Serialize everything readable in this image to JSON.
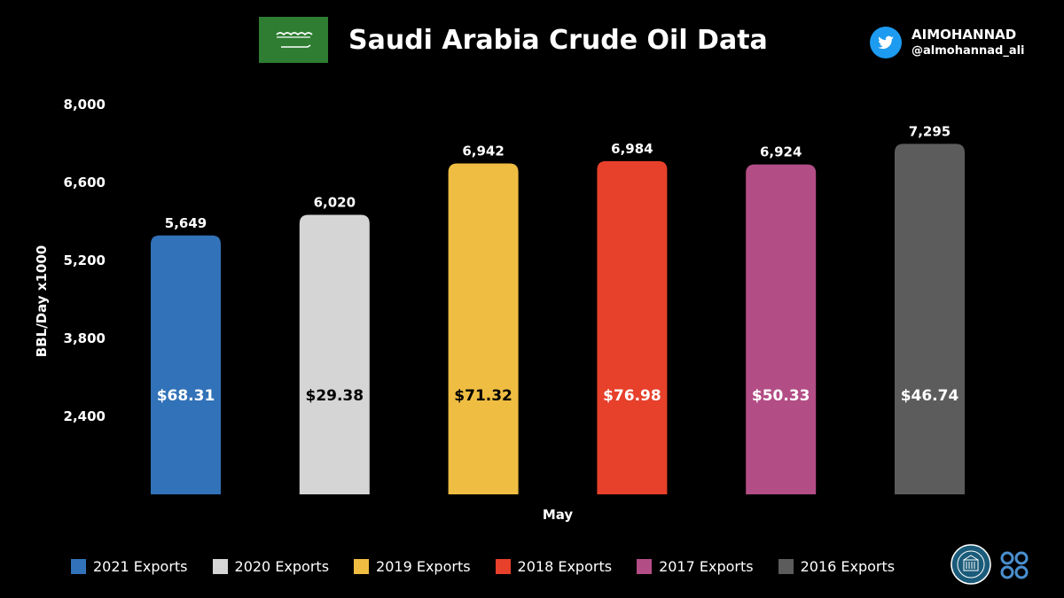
{
  "header": {
    "title": "Saudi Arabia Crude Oil Data",
    "author_name": "AIMOHANNAD",
    "author_handle": "@almohannad_ali",
    "flag_color": "#2e7d32",
    "icons": [
      "saudi-flag-icon",
      "twitter-icon",
      "seal-logo-icon",
      "opec-logo-icon"
    ]
  },
  "chart_data": {
    "type": "bar",
    "title": "Saudi Arabia Crude Oil Data",
    "xlabel": "May",
    "ylabel": "BBL/Day x1000",
    "ylim": [
      1000,
      8000
    ],
    "yticks": [
      "8,000",
      "6,600",
      "5,200",
      "3,800",
      "2,400"
    ],
    "ytick_values": [
      8000,
      6600,
      5200,
      3800,
      2400
    ],
    "grid": false,
    "legend_position": "bottom",
    "categories": [
      "May"
    ],
    "series": [
      {
        "name": "2021 Exports",
        "value": 5649,
        "label": "5,649",
        "price": "$68.31",
        "color": "#3272b8",
        "price_color": "#ffffff"
      },
      {
        "name": "2020 Exports",
        "value": 6020,
        "label": "6,020",
        "price": "$29.38",
        "color": "#d6d5d6",
        "price_color": "#000000"
      },
      {
        "name": "2019 Exports",
        "value": 6942,
        "label": "6,942",
        "price": "$71.32",
        "color": "#efbd42",
        "price_color": "#000000"
      },
      {
        "name": "2018 Exports",
        "value": 6984,
        "label": "6,984",
        "price": "$76.98",
        "color": "#e7402b",
        "price_color": "#ffffff"
      },
      {
        "name": "2017 Exports",
        "value": 6924,
        "label": "6,924",
        "price": "$50.33",
        "color": "#b34d85",
        "price_color": "#ffffff"
      },
      {
        "name": "2016 Exports",
        "value": 7295,
        "label": "7,295",
        "price": "$46.74",
        "color": "#5c5c5c",
        "price_color": "#ffffff"
      }
    ]
  }
}
